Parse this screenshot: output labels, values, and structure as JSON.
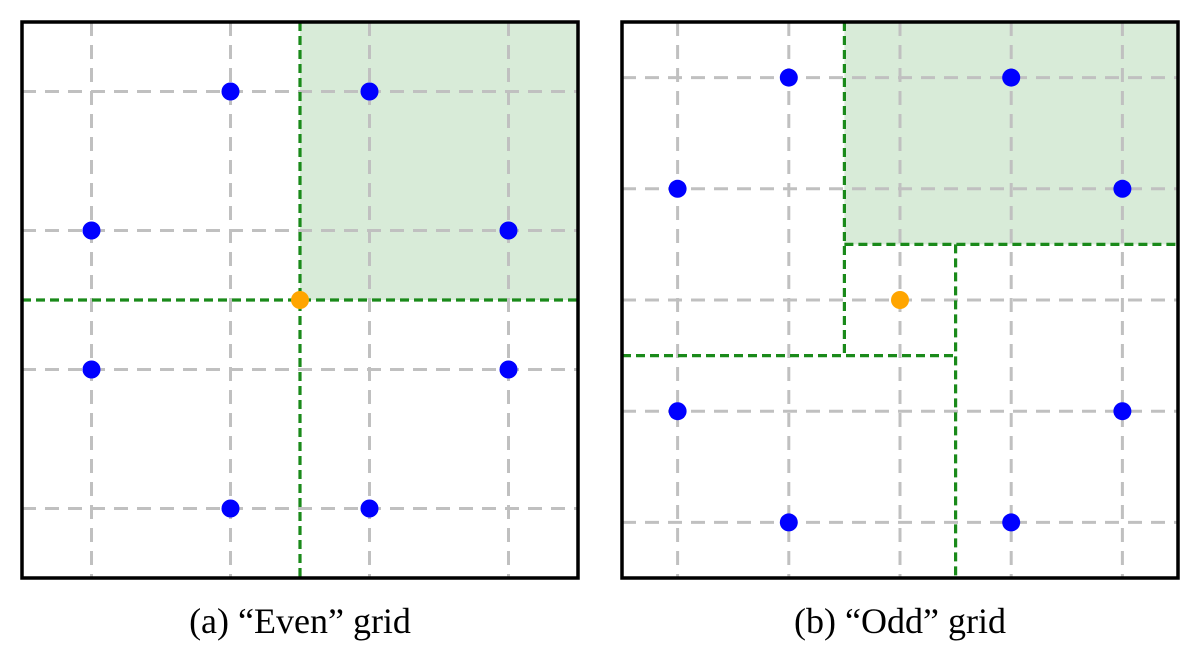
{
  "colors": {
    "grid_line": "#c0c0c0",
    "point": "#0000ff",
    "center_point": "#ffa500",
    "region_fill": "#d8ebd8",
    "region_border": "#1a8a1a",
    "frame": "#000000"
  },
  "panels": [
    {
      "caption": "(a) “Even” grid",
      "grid_lines": [
        0.125,
        0.375,
        0.625,
        0.875
      ],
      "points": [
        [
          1,
          0
        ],
        [
          2,
          0
        ],
        [
          3,
          1
        ],
        [
          3,
          2
        ],
        [
          2,
          3
        ],
        [
          1,
          3
        ],
        [
          0,
          2
        ],
        [
          0,
          1
        ]
      ],
      "center_point": [
        1.5,
        1.5
      ]
    },
    {
      "caption": "(b) “Odd” grid",
      "grid_lines": [
        0.1,
        0.3,
        0.5,
        0.7,
        0.9
      ],
      "points": [
        [
          1,
          0
        ],
        [
          3,
          0
        ],
        [
          4,
          1
        ],
        [
          4,
          3
        ],
        [
          3,
          4
        ],
        [
          1,
          4
        ],
        [
          0,
          3
        ],
        [
          0,
          1
        ]
      ],
      "center_point": [
        2,
        2
      ]
    }
  ]
}
